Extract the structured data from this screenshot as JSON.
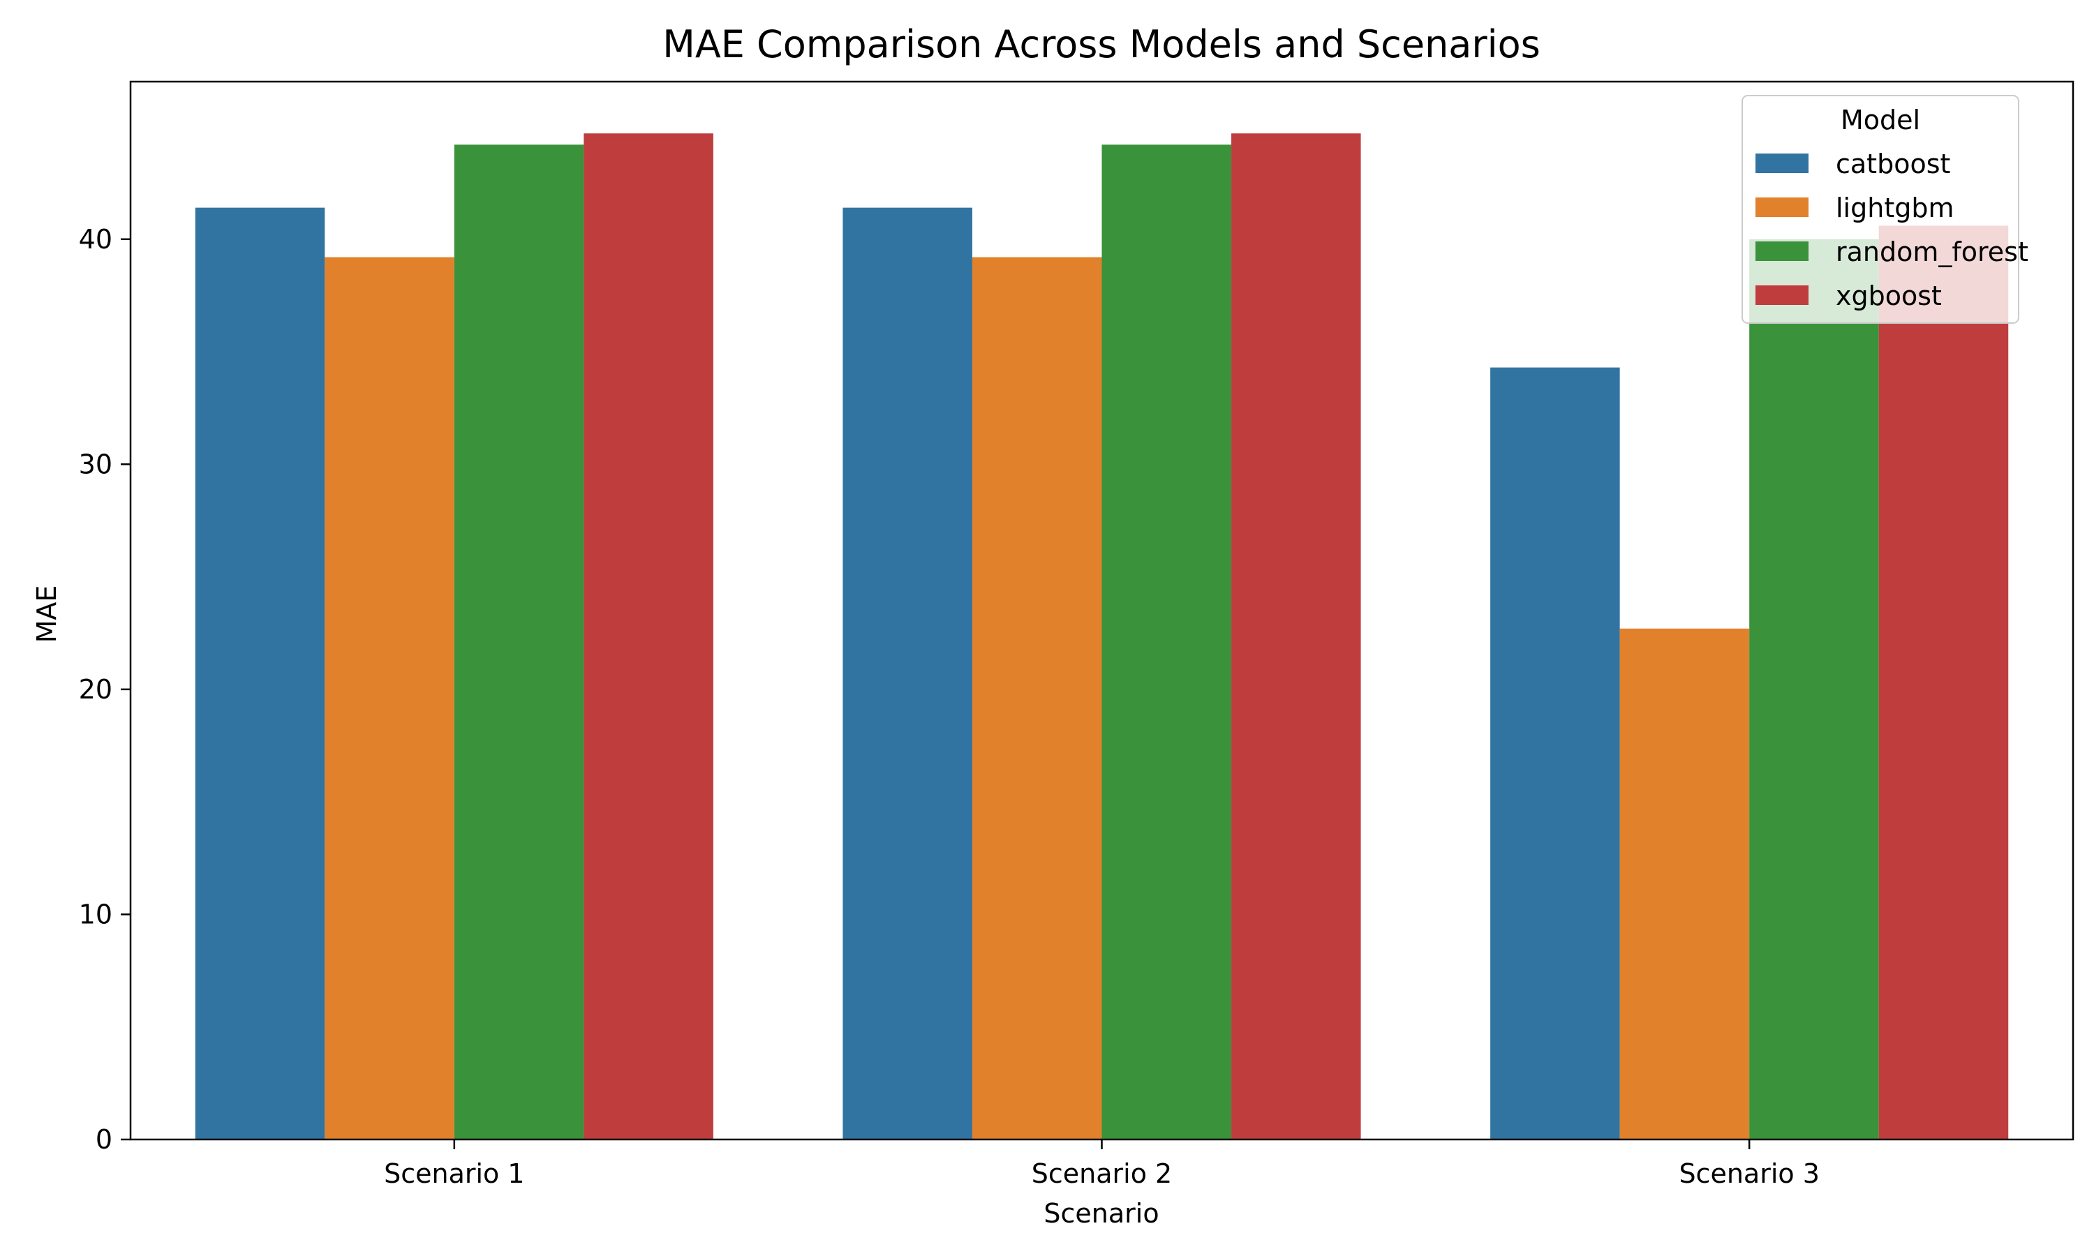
{
  "chart_data": {
    "type": "bar",
    "title": "MAE Comparison Across Models and Scenarios",
    "xlabel": "Scenario",
    "ylabel": "MAE",
    "ylim": [
      0,
      47
    ],
    "yticks": [
      0,
      10,
      20,
      30,
      40
    ],
    "categories": [
      "Scenario 1",
      "Scenario 2",
      "Scenario 3"
    ],
    "series": [
      {
        "name": "catboost",
        "color": "#3274a1",
        "values": [
          41.4,
          41.4,
          34.3
        ]
      },
      {
        "name": "lightgbm",
        "color": "#e1812c",
        "values": [
          39.2,
          39.2,
          22.7
        ]
      },
      {
        "name": "random_forest",
        "color": "#3a923a",
        "values": [
          44.2,
          44.2,
          40.0
        ]
      },
      {
        "name": "xgboost",
        "color": "#c03d3e",
        "values": [
          44.7,
          44.7,
          40.6
        ]
      }
    ],
    "legend": {
      "title": "Model",
      "location": "top-right"
    },
    "grid": false
  }
}
